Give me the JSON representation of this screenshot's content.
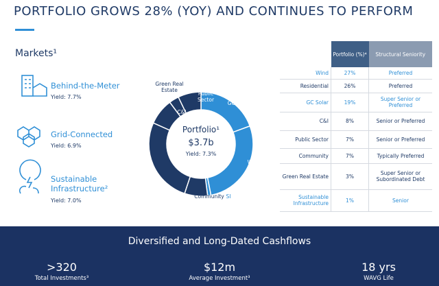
{
  "header": {
    "title": "PORTFOLIO GROWS 28% (YOY) AND CONTINUES TO PERFORM"
  },
  "markets": {
    "title": "Markets¹",
    "items": [
      {
        "name": "Behind-the-Meter",
        "yield": "Yield: 7.7%"
      },
      {
        "name": "Grid-Connected",
        "yield": "Yield: 6.9%"
      },
      {
        "name": "Sustainable Infrastructure²",
        "yield": "Yield: 7.0%"
      }
    ]
  },
  "chart_data": {
    "type": "donut",
    "center_title": "Portfolio¹",
    "center_value": "$3.7b",
    "center_note": "Yield: 7.3%",
    "categories": [
      "GC Solar",
      "Wind",
      "SI",
      "Community",
      "Resi",
      "C&I",
      "Green Real Estate",
      "Public Sector"
    ],
    "values": [
      19,
      27,
      1,
      7,
      26,
      8,
      3,
      7
    ],
    "colors": [
      "#2f8fd6",
      "#2f8fd6",
      "#2f8fd6",
      "#1f3a66",
      "#1f3a66",
      "#1f3a66",
      "#1f3a66",
      "#1f3a66"
    ]
  },
  "table": {
    "headers": [
      "Portfolio (%)⁴",
      "Structural Seniority"
    ],
    "rows": [
      {
        "name": "Wind",
        "portfolio": "27%",
        "seniority": "Preferred"
      },
      {
        "name": "Residential",
        "portfolio": "26%",
        "seniority": "Preferred"
      },
      {
        "name": "GC Solar",
        "portfolio": "19%",
        "seniority": "Super Senior or Preferred"
      },
      {
        "name": "C&I",
        "portfolio": "8%",
        "seniority": "Senior or Preferred"
      },
      {
        "name": "Public Sector",
        "portfolio": "7%",
        "seniority": "Senior or Preferred"
      },
      {
        "name": "Community",
        "portfolio": "7%",
        "seniority": "Typically Preferred"
      },
      {
        "name": "Green Real Estate",
        "portfolio": "3%",
        "seniority": "Super Senior or Subordinated Debt"
      },
      {
        "name": "Sustainable Infrastructure",
        "portfolio": "1%",
        "seniority": "Senior"
      }
    ]
  },
  "banner": {
    "title": "Diversified and Long-Dated Cashflows",
    "stats": [
      {
        "value": ">320",
        "label": "Total Investments³"
      },
      {
        "value": "$12m",
        "label": "Average Investment³"
      },
      {
        "value": "18 yrs",
        "label": "WAVG Life"
      }
    ]
  }
}
